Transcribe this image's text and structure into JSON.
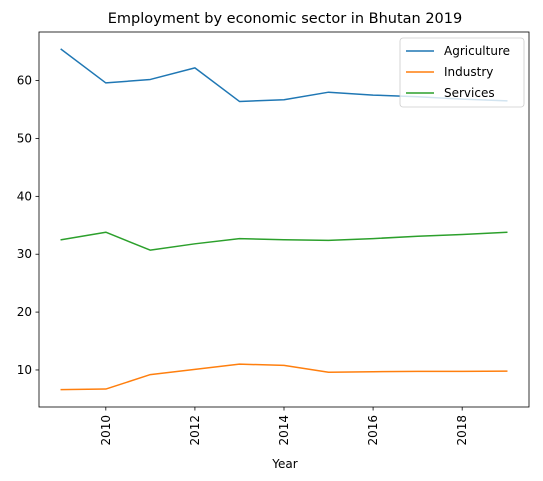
{
  "chart_data": {
    "type": "line",
    "title": "Employment by economic sector in Bhutan 2019",
    "xlabel": "Year",
    "ylabel": "",
    "x": [
      2009,
      2010,
      2011,
      2012,
      2013,
      2014,
      2015,
      2016,
      2017,
      2018,
      2019
    ],
    "xlim": [
      2008.5,
      2019.5
    ],
    "ylim": [
      3.6,
      68.4
    ],
    "xticks": [
      2010,
      2012,
      2014,
      2016,
      2018
    ],
    "yticks": [
      10,
      20,
      30,
      40,
      50,
      60
    ],
    "grid": false,
    "legend_position": "top-right",
    "series": [
      {
        "name": "Agriculture",
        "color": "#1f77b4",
        "values": [
          65.4,
          59.6,
          60.2,
          62.2,
          56.4,
          56.7,
          58.0,
          57.5,
          57.2,
          56.8,
          56.5
        ]
      },
      {
        "name": "Industry",
        "color": "#ff7f0e",
        "values": [
          6.6,
          6.7,
          9.2,
          10.1,
          11.0,
          10.8,
          9.6,
          9.7,
          9.75,
          9.75,
          9.8
        ]
      },
      {
        "name": "Services",
        "color": "#2ca02c",
        "values": [
          32.5,
          33.8,
          30.7,
          31.8,
          32.7,
          32.5,
          32.4,
          32.7,
          33.1,
          33.4,
          33.8
        ]
      }
    ]
  }
}
